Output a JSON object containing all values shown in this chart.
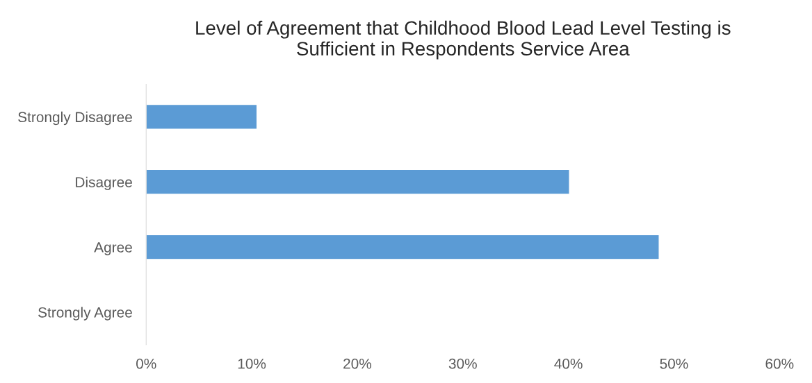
{
  "chart_data": {
    "type": "bar",
    "orientation": "horizontal",
    "title": "Level of Agreement that Childhood Blood Lead Level Testing is\nSufficient in Respondents Service Area",
    "categories": [
      "Strongly Disagree",
      "Disagree",
      "Agree",
      "Strongly Agree"
    ],
    "values": [
      10.5,
      40.1,
      48.6,
      null
    ],
    "color": "#5b9bd5",
    "xlim": [
      0,
      60
    ],
    "xticks": [
      {
        "value": 0,
        "label": "0%"
      },
      {
        "value": 10,
        "label": "10%"
      },
      {
        "value": 20,
        "label": "20%"
      },
      {
        "value": 30,
        "label": "30%"
      },
      {
        "value": 40,
        "label": "40%"
      },
      {
        "value": 50,
        "label": "50%"
      },
      {
        "value": 60,
        "label": "60%"
      }
    ],
    "grid": false,
    "legend": false
  }
}
